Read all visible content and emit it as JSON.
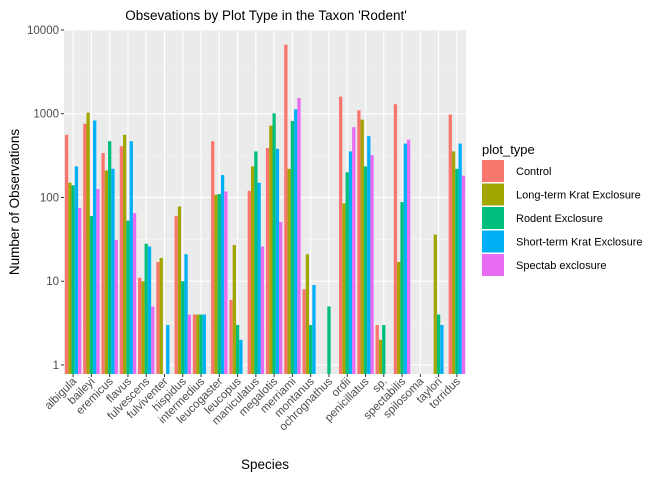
{
  "chart_data": {
    "type": "bar",
    "title": "Obsevations by Plot Type in the Taxon 'Rodent'",
    "xlabel": "Species",
    "ylabel": "Number of Observations",
    "y_scale": "log10",
    "ylim": [
      0.78,
      10000
    ],
    "y_ticks": [
      {
        "value": 1,
        "label": "1"
      },
      {
        "value": 10,
        "label": "10"
      },
      {
        "value": 100,
        "label": "100"
      },
      {
        "value": 1000,
        "label": "1000"
      },
      {
        "value": 10000,
        "label": "10000"
      }
    ],
    "grid": true,
    "legend_position": "right",
    "legend_title": "plot_type",
    "categories": [
      "albigula",
      "baileyi",
      "eremicus",
      "flavus",
      "fulvescens",
      "fulviventer",
      "hispidus",
      "intermedius",
      "leucogaster",
      "leucopus",
      "maniculatus",
      "megalotis",
      "merriami",
      "montanus",
      "ochrognathus",
      "ordii",
      "penicillatus",
      "sp.",
      "spectabilis",
      "spilosoma",
      "taylori",
      "torridus"
    ],
    "series": [
      {
        "name": "Control",
        "color": "#F8766D",
        "values": [
          560,
          760,
          340,
          410,
          11,
          17,
          60,
          4,
          470,
          6,
          120,
          390,
          6700,
          8,
          null,
          1600,
          1100,
          3,
          1300,
          null,
          null,
          980
        ]
      },
      {
        "name": "Long-term Krat Exclosure",
        "color": "#A3A500",
        "values": [
          150,
          1030,
          210,
          560,
          10,
          19,
          78,
          4,
          108,
          27,
          235,
          720,
          220,
          21,
          null,
          85,
          850,
          2,
          17,
          null,
          36,
          355
        ]
      },
      {
        "name": "Rodent Exclosure",
        "color": "#00BF7D",
        "values": [
          140,
          60,
          470,
          53,
          28,
          null,
          10,
          4,
          110,
          3,
          355,
          1010,
          820,
          3,
          5,
          200,
          235,
          3,
          88,
          null,
          4,
          220
        ]
      },
      {
        "name": "Short-term Krat Exclosure",
        "color": "#00B0F6",
        "values": [
          235,
          830,
          220,
          470,
          26,
          3,
          21,
          4,
          185,
          2,
          150,
          380,
          1130,
          9,
          null,
          355,
          540,
          null,
          440,
          null,
          3,
          440
        ]
      },
      {
        "name": "Spectab exclosure",
        "color": "#E76BF3",
        "values": [
          75,
          126,
          31,
          65,
          5,
          null,
          4,
          null,
          118,
          null,
          26,
          51,
          1540,
          null,
          null,
          690,
          320,
          null,
          490,
          null,
          null,
          182
        ]
      }
    ]
  }
}
